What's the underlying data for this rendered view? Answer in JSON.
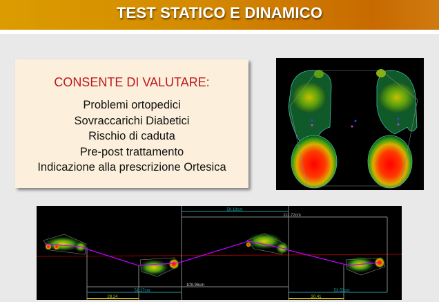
{
  "header": {
    "title": "TEST STATICO E DINAMICO"
  },
  "info_box": {
    "title": "CONSENTE DI VALUTARE:",
    "items": [
      "Problemi ortopedici",
      "Sovraccarichi Diabetici",
      "Rischio di caduta",
      "Pre-post trattamento",
      "Indicazione alla prescrizione Ortesica"
    ]
  },
  "static_test_image": {
    "description_icon": "foot-pressure-map-icon"
  },
  "dynamic_test_image": {
    "measurements": {
      "top_teal": "59.19cm",
      "top_gray": "111.72cm",
      "bottom_gray": "109.96cm",
      "bottom_teal_left": "51.17cm",
      "bottom_teal_right": "53.53cm",
      "bottom_yellow_left": "28.24",
      "bottom_yellow_right": "30.41"
    }
  },
  "colors": {
    "header": "#d38a00",
    "title_red": "#c0161a",
    "box_bg": "#fcefdc",
    "path": "#c000ff",
    "teal": "#1fa0a8",
    "yellow": "#b8b020"
  }
}
